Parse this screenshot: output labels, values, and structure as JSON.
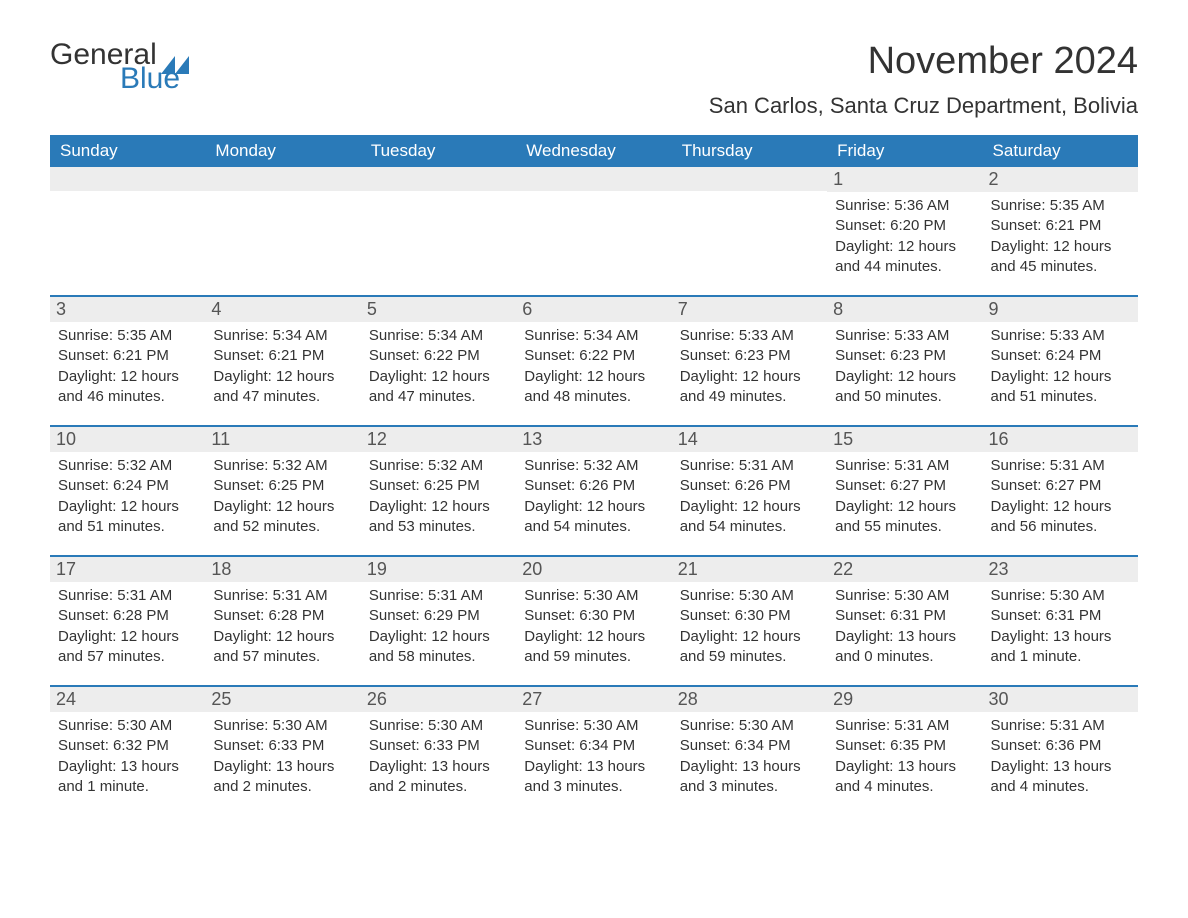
{
  "logo": {
    "general": "General",
    "blue": "Blue"
  },
  "title": {
    "month": "November 2024",
    "location": "San Carlos, Santa Cruz Department, Bolivia"
  },
  "colors": {
    "header_bg": "#2a7ab8",
    "header_text": "#ffffff",
    "daynum_bg": "#ededed",
    "week_border": "#2a7ab8",
    "text": "#333333"
  },
  "daynames": [
    "Sunday",
    "Monday",
    "Tuesday",
    "Wednesday",
    "Thursday",
    "Friday",
    "Saturday"
  ],
  "weeks": [
    [
      {
        "n": "",
        "sr": "",
        "ss": "",
        "dl": ""
      },
      {
        "n": "",
        "sr": "",
        "ss": "",
        "dl": ""
      },
      {
        "n": "",
        "sr": "",
        "ss": "",
        "dl": ""
      },
      {
        "n": "",
        "sr": "",
        "ss": "",
        "dl": ""
      },
      {
        "n": "",
        "sr": "",
        "ss": "",
        "dl": ""
      },
      {
        "n": "1",
        "sr": "Sunrise: 5:36 AM",
        "ss": "Sunset: 6:20 PM",
        "dl": "Daylight: 12 hours and 44 minutes."
      },
      {
        "n": "2",
        "sr": "Sunrise: 5:35 AM",
        "ss": "Sunset: 6:21 PM",
        "dl": "Daylight: 12 hours and 45 minutes."
      }
    ],
    [
      {
        "n": "3",
        "sr": "Sunrise: 5:35 AM",
        "ss": "Sunset: 6:21 PM",
        "dl": "Daylight: 12 hours and 46 minutes."
      },
      {
        "n": "4",
        "sr": "Sunrise: 5:34 AM",
        "ss": "Sunset: 6:21 PM",
        "dl": "Daylight: 12 hours and 47 minutes."
      },
      {
        "n": "5",
        "sr": "Sunrise: 5:34 AM",
        "ss": "Sunset: 6:22 PM",
        "dl": "Daylight: 12 hours and 47 minutes."
      },
      {
        "n": "6",
        "sr": "Sunrise: 5:34 AM",
        "ss": "Sunset: 6:22 PM",
        "dl": "Daylight: 12 hours and 48 minutes."
      },
      {
        "n": "7",
        "sr": "Sunrise: 5:33 AM",
        "ss": "Sunset: 6:23 PM",
        "dl": "Daylight: 12 hours and 49 minutes."
      },
      {
        "n": "8",
        "sr": "Sunrise: 5:33 AM",
        "ss": "Sunset: 6:23 PM",
        "dl": "Daylight: 12 hours and 50 minutes."
      },
      {
        "n": "9",
        "sr": "Sunrise: 5:33 AM",
        "ss": "Sunset: 6:24 PM",
        "dl": "Daylight: 12 hours and 51 minutes."
      }
    ],
    [
      {
        "n": "10",
        "sr": "Sunrise: 5:32 AM",
        "ss": "Sunset: 6:24 PM",
        "dl": "Daylight: 12 hours and 51 minutes."
      },
      {
        "n": "11",
        "sr": "Sunrise: 5:32 AM",
        "ss": "Sunset: 6:25 PM",
        "dl": "Daylight: 12 hours and 52 minutes."
      },
      {
        "n": "12",
        "sr": "Sunrise: 5:32 AM",
        "ss": "Sunset: 6:25 PM",
        "dl": "Daylight: 12 hours and 53 minutes."
      },
      {
        "n": "13",
        "sr": "Sunrise: 5:32 AM",
        "ss": "Sunset: 6:26 PM",
        "dl": "Daylight: 12 hours and 54 minutes."
      },
      {
        "n": "14",
        "sr": "Sunrise: 5:31 AM",
        "ss": "Sunset: 6:26 PM",
        "dl": "Daylight: 12 hours and 54 minutes."
      },
      {
        "n": "15",
        "sr": "Sunrise: 5:31 AM",
        "ss": "Sunset: 6:27 PM",
        "dl": "Daylight: 12 hours and 55 minutes."
      },
      {
        "n": "16",
        "sr": "Sunrise: 5:31 AM",
        "ss": "Sunset: 6:27 PM",
        "dl": "Daylight: 12 hours and 56 minutes."
      }
    ],
    [
      {
        "n": "17",
        "sr": "Sunrise: 5:31 AM",
        "ss": "Sunset: 6:28 PM",
        "dl": "Daylight: 12 hours and 57 minutes."
      },
      {
        "n": "18",
        "sr": "Sunrise: 5:31 AM",
        "ss": "Sunset: 6:28 PM",
        "dl": "Daylight: 12 hours and 57 minutes."
      },
      {
        "n": "19",
        "sr": "Sunrise: 5:31 AM",
        "ss": "Sunset: 6:29 PM",
        "dl": "Daylight: 12 hours and 58 minutes."
      },
      {
        "n": "20",
        "sr": "Sunrise: 5:30 AM",
        "ss": "Sunset: 6:30 PM",
        "dl": "Daylight: 12 hours and 59 minutes."
      },
      {
        "n": "21",
        "sr": "Sunrise: 5:30 AM",
        "ss": "Sunset: 6:30 PM",
        "dl": "Daylight: 12 hours and 59 minutes."
      },
      {
        "n": "22",
        "sr": "Sunrise: 5:30 AM",
        "ss": "Sunset: 6:31 PM",
        "dl": "Daylight: 13 hours and 0 minutes."
      },
      {
        "n": "23",
        "sr": "Sunrise: 5:30 AM",
        "ss": "Sunset: 6:31 PM",
        "dl": "Daylight: 13 hours and 1 minute."
      }
    ],
    [
      {
        "n": "24",
        "sr": "Sunrise: 5:30 AM",
        "ss": "Sunset: 6:32 PM",
        "dl": "Daylight: 13 hours and 1 minute."
      },
      {
        "n": "25",
        "sr": "Sunrise: 5:30 AM",
        "ss": "Sunset: 6:33 PM",
        "dl": "Daylight: 13 hours and 2 minutes."
      },
      {
        "n": "26",
        "sr": "Sunrise: 5:30 AM",
        "ss": "Sunset: 6:33 PM",
        "dl": "Daylight: 13 hours and 2 minutes."
      },
      {
        "n": "27",
        "sr": "Sunrise: 5:30 AM",
        "ss": "Sunset: 6:34 PM",
        "dl": "Daylight: 13 hours and 3 minutes."
      },
      {
        "n": "28",
        "sr": "Sunrise: 5:30 AM",
        "ss": "Sunset: 6:34 PM",
        "dl": "Daylight: 13 hours and 3 minutes."
      },
      {
        "n": "29",
        "sr": "Sunrise: 5:31 AM",
        "ss": "Sunset: 6:35 PM",
        "dl": "Daylight: 13 hours and 4 minutes."
      },
      {
        "n": "30",
        "sr": "Sunrise: 5:31 AM",
        "ss": "Sunset: 6:36 PM",
        "dl": "Daylight: 13 hours and 4 minutes."
      }
    ]
  ]
}
